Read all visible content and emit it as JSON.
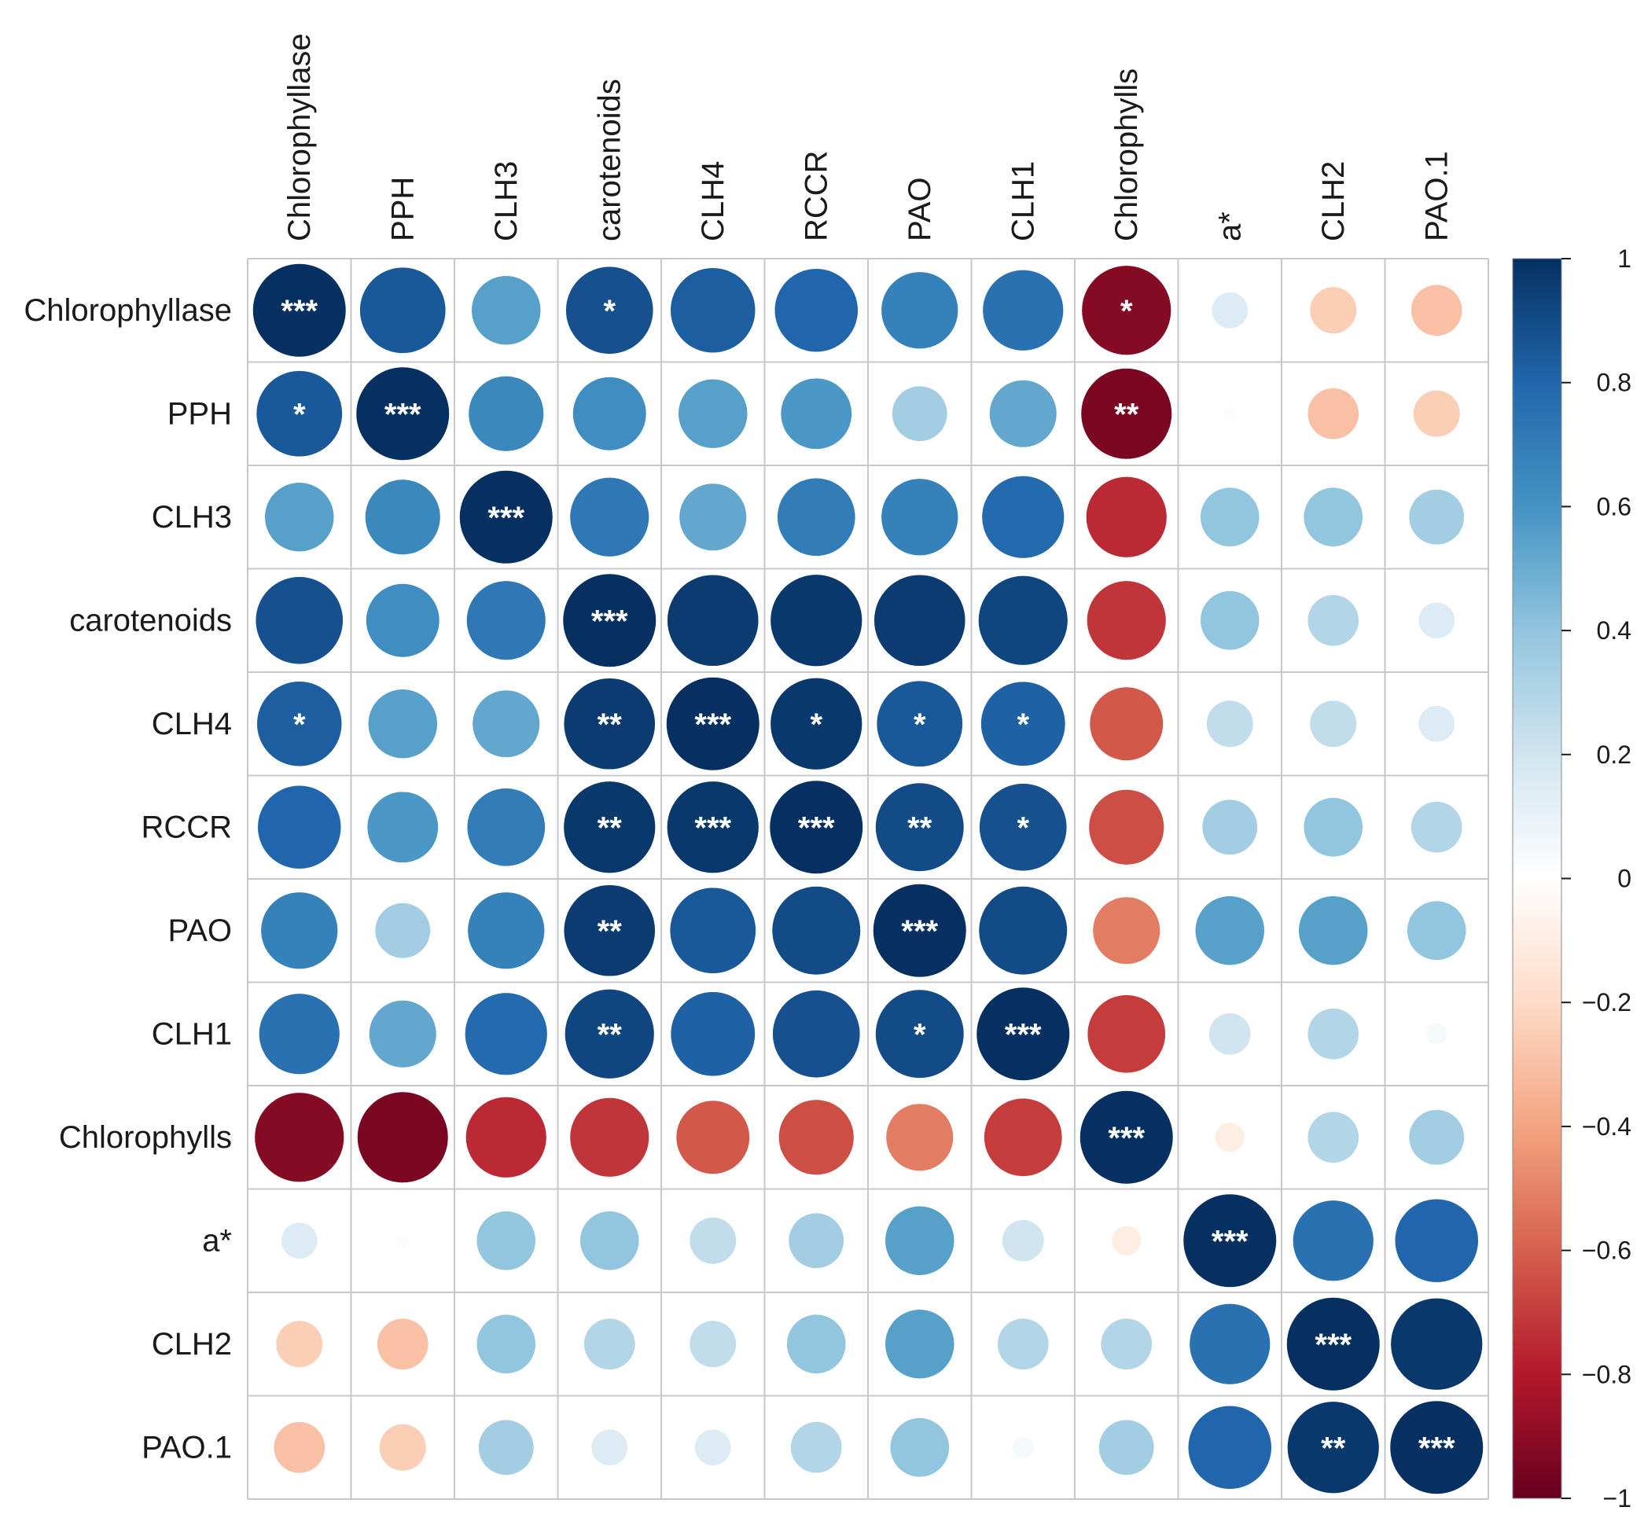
{
  "chart_data": {
    "type": "heatmap",
    "subtype": "correlation-circle-matrix",
    "title": "",
    "variables": [
      "Chlorophyllase",
      "PPH",
      "CLH3",
      "carotenoids",
      "CLH4",
      "RCCR",
      "PAO",
      "CLH1",
      "Chlorophylls",
      "a*",
      "CLH2",
      "PAO.1"
    ],
    "values": [
      [
        1.0,
        0.85,
        0.55,
        0.88,
        0.83,
        0.8,
        0.68,
        0.75,
        -0.92,
        0.15,
        -0.25,
        -0.3
      ],
      [
        0.85,
        1.0,
        0.65,
        0.62,
        0.55,
        0.58,
        0.35,
        0.52,
        -0.95,
        0.02,
        -0.3,
        -0.25
      ],
      [
        0.55,
        0.65,
        1.0,
        0.72,
        0.52,
        0.7,
        0.68,
        0.78,
        -0.75,
        0.4,
        0.4,
        0.35
      ],
      [
        0.88,
        0.62,
        0.72,
        1.0,
        0.96,
        0.97,
        0.96,
        0.92,
        -0.72,
        0.4,
        0.3,
        0.15
      ],
      [
        0.83,
        0.55,
        0.52,
        0.96,
        1.0,
        0.97,
        0.85,
        0.82,
        -0.62,
        0.25,
        0.25,
        0.15
      ],
      [
        0.8,
        0.58,
        0.7,
        0.97,
        0.97,
        1.0,
        0.9,
        0.88,
        -0.65,
        0.35,
        0.4,
        0.3
      ],
      [
        0.68,
        0.35,
        0.68,
        0.96,
        0.85,
        0.9,
        1.0,
        0.9,
        -0.52,
        0.55,
        0.55,
        0.4
      ],
      [
        0.75,
        0.52,
        0.78,
        0.92,
        0.82,
        0.88,
        0.9,
        1.0,
        -0.7,
        0.2,
        0.3,
        0.05
      ],
      [
        -0.92,
        -0.95,
        -0.75,
        -0.72,
        -0.62,
        -0.65,
        -0.52,
        -0.7,
        1.0,
        -0.1,
        0.3,
        0.35
      ],
      [
        0.15,
        0.02,
        0.4,
        0.4,
        0.25,
        0.35,
        0.55,
        0.2,
        -0.1,
        1.0,
        0.75,
        0.8
      ],
      [
        -0.25,
        -0.3,
        0.4,
        0.3,
        0.25,
        0.4,
        0.55,
        0.3,
        0.3,
        0.75,
        1.0,
        0.97
      ],
      [
        -0.3,
        -0.25,
        0.35,
        0.15,
        0.15,
        0.3,
        0.4,
        0.05,
        0.35,
        0.8,
        0.97,
        1.0
      ]
    ],
    "significance": [
      [
        "***",
        "",
        "",
        "*",
        "",
        "",
        "",
        "",
        "*",
        "",
        "",
        ""
      ],
      [
        "*",
        "***",
        "",
        "",
        "",
        "",
        "",
        "",
        "**",
        "",
        "",
        ""
      ],
      [
        "",
        "",
        "***",
        "",
        "",
        "",
        "",
        "",
        "",
        "",
        "",
        ""
      ],
      [
        "",
        "",
        "",
        "***",
        "",
        "",
        "",
        "",
        "",
        "",
        "",
        ""
      ],
      [
        "*",
        "",
        "",
        "**",
        "***",
        "*",
        "*",
        "*",
        "",
        "",
        "",
        ""
      ],
      [
        "",
        "",
        "",
        "**",
        "***",
        "***",
        "**",
        "*",
        "",
        "",
        "",
        ""
      ],
      [
        "",
        "",
        "",
        "**",
        "",
        "",
        "***",
        "",
        "",
        "",
        "",
        ""
      ],
      [
        "",
        "",
        "",
        "**",
        "",
        "",
        "*",
        "***",
        "",
        "",
        "",
        ""
      ],
      [
        "",
        "",
        "",
        "",
        "",
        "",
        "",
        "",
        "***",
        "",
        "",
        ""
      ],
      [
        "",
        "",
        "",
        "",
        "",
        "",
        "",
        "",
        "",
        "***",
        "",
        ""
      ],
      [
        "",
        "",
        "",
        "",
        "",
        "",
        "",
        "",
        "",
        "",
        "***",
        ""
      ],
      [
        "",
        "",
        "",
        "",
        "",
        "",
        "",
        "",
        "",
        "",
        "**",
        "***"
      ]
    ],
    "color_scale": {
      "range": [
        -1,
        1
      ],
      "ticks": [
        1,
        0.8,
        0.6,
        0.4,
        0.2,
        0,
        -0.2,
        -0.4,
        -0.6,
        -0.8,
        -1
      ],
      "tick_labels": [
        "1",
        "0.8",
        "0.6",
        "0.4",
        "0.2",
        "0",
        "−0.2",
        "−0.4",
        "−0.6",
        "−0.8",
        "−1"
      ],
      "colors": [
        "#67001f",
        "#b2182b",
        "#d6604d",
        "#f4a582",
        "#fddbc7",
        "#ffffff",
        "#d1e5f0",
        "#92c5de",
        "#4393c3",
        "#2166ac",
        "#053061"
      ]
    }
  }
}
